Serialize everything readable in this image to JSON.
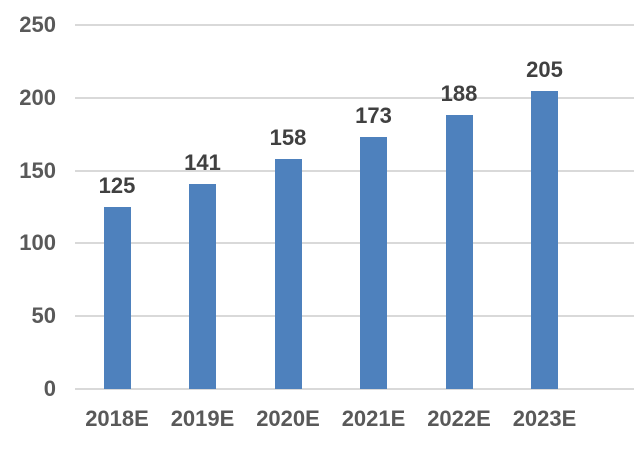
{
  "chart_data": {
    "type": "bar",
    "title": "",
    "xlabel": "",
    "ylabel": "",
    "categories": [
      "2018E",
      "2019E",
      "2020E",
      "2021E",
      "2022E",
      "2023E"
    ],
    "values": [
      125,
      141,
      158,
      173,
      188,
      205
    ],
    "data_labels": [
      "125",
      "141",
      "158",
      "173",
      "188",
      "205"
    ],
    "y_ticks": [
      0,
      50,
      100,
      150,
      200,
      250
    ],
    "y_tick_labels": [
      "0",
      "50",
      "100",
      "150",
      "200",
      "250"
    ],
    "ylim": [
      0,
      250
    ],
    "grid": "horizontal-on",
    "legend": "none",
    "colors": {
      "bar": "#4E81BD",
      "gridline": "#D9D9D9",
      "axis_line": "#D9D9D9",
      "tick_label": "#595959",
      "data_label": "#404040"
    }
  }
}
